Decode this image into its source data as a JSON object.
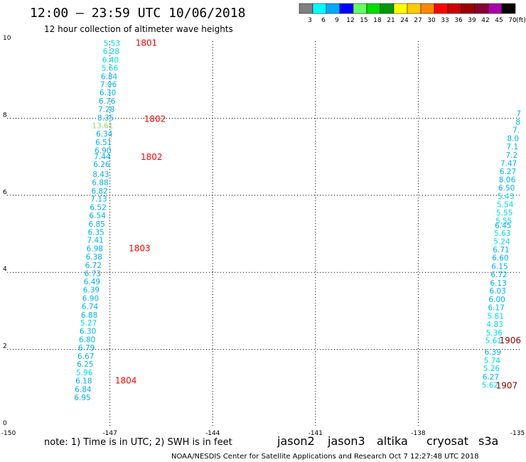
{
  "header": {
    "title": "12:00 – 23:59 UTC 10/06/2018",
    "subtitle": "12 hour collection of altimeter wave heights"
  },
  "color_scale": {
    "labels": [
      "3",
      "6",
      "9",
      "12",
      "15",
      "18",
      "21",
      "24",
      "27",
      "30",
      "33",
      "36",
      "39",
      "42",
      "45",
      "70"
    ],
    "unit": "(ft)",
    "colors": [
      "#808080",
      "#00ffff",
      "#00aaff",
      "#0000ff",
      "#66ff66",
      "#00dd00",
      "#009900",
      "#ffff00",
      "#ffcc00",
      "#ff8800",
      "#ff0000",
      "#cc0000",
      "#990000",
      "#880033",
      "#aa00aa",
      "#000000"
    ]
  },
  "chart_data": {
    "type": "scatter",
    "xlim": [
      -150,
      -135
    ],
    "ylim": [
      0,
      10
    ],
    "x_ticks": [
      "-150",
      "-147",
      "-144",
      "-141",
      "-138",
      "-135"
    ],
    "y_ticks": [
      "0",
      "2",
      "4",
      "6",
      "8",
      "10"
    ],
    "grid": true,
    "series": [
      {
        "track": "west",
        "points": [
          {
            "x": -146.7,
            "y": 9.95,
            "v": "5.53",
            "c": "#00d8e8"
          },
          {
            "x": -146.72,
            "y": 9.74,
            "v": "6.28",
            "c": "#00d8e8"
          },
          {
            "x": -146.74,
            "y": 9.52,
            "v": "6.40",
            "c": "#00d8e8"
          },
          {
            "x": -146.76,
            "y": 9.31,
            "v": "5.66",
            "c": "#00d8e8"
          },
          {
            "x": -146.78,
            "y": 9.09,
            "v": "6.84",
            "c": "#00b0f0"
          },
          {
            "x": -146.8,
            "y": 8.88,
            "v": "7.06",
            "c": "#00b0f0"
          },
          {
            "x": -146.82,
            "y": 8.67,
            "v": "6.30",
            "c": "#00b0f0"
          },
          {
            "x": -146.84,
            "y": 8.45,
            "v": "6.76",
            "c": "#00b0f0"
          },
          {
            "x": -146.86,
            "y": 8.24,
            "v": "7.28",
            "c": "#00b0f0"
          },
          {
            "x": -146.88,
            "y": 8.02,
            "v": "8.35",
            "c": "#00b0f0"
          },
          {
            "x": -146.9,
            "y": 7.81,
            "v": "13.61",
            "c": "#99dd66"
          },
          {
            "x": -146.92,
            "y": 7.6,
            "v": "6.34",
            "c": "#00b0f0"
          },
          {
            "x": -146.94,
            "y": 7.38,
            "v": "6.51",
            "c": "#00b0f0"
          },
          {
            "x": -146.96,
            "y": 7.17,
            "v": "6.90",
            "c": "#00b0f0"
          },
          {
            "x": -146.98,
            "y": 7.01,
            "v": "7.44",
            "c": "#00b0f0"
          },
          {
            "x": -147.0,
            "y": 6.81,
            "v": "6.26",
            "c": "#00b0f0"
          },
          {
            "x": -147.02,
            "y": 6.55,
            "v": "8.43",
            "c": "#00b0f0"
          },
          {
            "x": -147.04,
            "y": 6.34,
            "v": "6.88",
            "c": "#00b0f0"
          },
          {
            "x": -147.06,
            "y": 6.12,
            "v": "6.82",
            "c": "#00b0f0"
          },
          {
            "x": -147.08,
            "y": 5.91,
            "v": "7.13",
            "c": "#00b0f0"
          },
          {
            "x": -147.1,
            "y": 5.69,
            "v": "6.52",
            "c": "#00b0f0"
          },
          {
            "x": -147.12,
            "y": 5.48,
            "v": "6.54",
            "c": "#00b0f0"
          },
          {
            "x": -147.14,
            "y": 5.26,
            "v": "6.85",
            "c": "#00b0f0"
          },
          {
            "x": -147.16,
            "y": 5.05,
            "v": "6.35",
            "c": "#00b0f0"
          },
          {
            "x": -147.18,
            "y": 4.84,
            "v": "7.41",
            "c": "#00b0f0"
          },
          {
            "x": -147.2,
            "y": 4.62,
            "v": "6.98",
            "c": "#00b0f0"
          },
          {
            "x": -147.22,
            "y": 4.41,
            "v": "6.38",
            "c": "#00b0f0"
          },
          {
            "x": -147.24,
            "y": 4.19,
            "v": "6.72",
            "c": "#00b0f0"
          },
          {
            "x": -147.26,
            "y": 3.98,
            "v": "6.73",
            "c": "#00b0f0"
          },
          {
            "x": -147.28,
            "y": 3.76,
            "v": "6.49",
            "c": "#00b0f0"
          },
          {
            "x": -147.3,
            "y": 3.55,
            "v": "6.39",
            "c": "#00b0f0"
          },
          {
            "x": -147.32,
            "y": 3.33,
            "v": "6.90",
            "c": "#00b0f0"
          },
          {
            "x": -147.34,
            "y": 3.12,
            "v": "6.74",
            "c": "#00b0f0"
          },
          {
            "x": -147.36,
            "y": 2.9,
            "v": "6.88",
            "c": "#00b0f0"
          },
          {
            "x": -147.38,
            "y": 2.69,
            "v": "5.27",
            "c": "#00d8e8"
          },
          {
            "x": -147.4,
            "y": 2.48,
            "v": "6.30",
            "c": "#00b0f0"
          },
          {
            "x": -147.42,
            "y": 2.26,
            "v": "6.80",
            "c": "#00b0f0"
          },
          {
            "x": -147.44,
            "y": 2.05,
            "v": "6.79",
            "c": "#00b0f0"
          },
          {
            "x": -147.46,
            "y": 1.83,
            "v": "6.67",
            "c": "#00b0f0"
          },
          {
            "x": -147.48,
            "y": 1.62,
            "v": "6.25",
            "c": "#00b0f0"
          },
          {
            "x": -147.5,
            "y": 1.4,
            "v": "5.96",
            "c": "#00d8e8"
          },
          {
            "x": -147.52,
            "y": 1.19,
            "v": "6.18",
            "c": "#00b0f0"
          },
          {
            "x": -147.54,
            "y": 0.97,
            "v": "6.84",
            "c": "#00b0f0"
          },
          {
            "x": -147.56,
            "y": 0.76,
            "v": "6.95",
            "c": "#00b0f0"
          }
        ]
      },
      {
        "track": "east",
        "points": [
          {
            "x": -135.0,
            "y": 8.13,
            "v": "7",
            "c": "#00b0f0"
          },
          {
            "x": -135.02,
            "y": 7.91,
            "v": "8",
            "c": "#00b0f0"
          },
          {
            "x": -135.04,
            "y": 7.7,
            "v": "7.",
            "c": "#00b0f0"
          },
          {
            "x": -135.06,
            "y": 7.48,
            "v": "8.0",
            "c": "#00b0f0"
          },
          {
            "x": -135.08,
            "y": 7.27,
            "v": "7.1",
            "c": "#00b0f0"
          },
          {
            "x": -135.1,
            "y": 7.05,
            "v": "7.2",
            "c": "#00b0f0"
          },
          {
            "x": -135.12,
            "y": 6.84,
            "v": "7.47",
            "c": "#00b0f0"
          },
          {
            "x": -135.14,
            "y": 6.62,
            "v": "6.27",
            "c": "#00b0f0"
          },
          {
            "x": -135.16,
            "y": 6.41,
            "v": "8.06",
            "c": "#00b0f0"
          },
          {
            "x": -135.18,
            "y": 6.2,
            "v": "6.50",
            "c": "#00b0f0"
          },
          {
            "x": -135.2,
            "y": 5.98,
            "v": "5.43",
            "c": "#00d8e8"
          },
          {
            "x": -135.22,
            "y": 5.77,
            "v": "5.54",
            "c": "#00d8e8"
          },
          {
            "x": -135.24,
            "y": 5.55,
            "v": "5.55",
            "c": "#00d8e8"
          },
          {
            "x": -135.26,
            "y": 5.34,
            "v": "5.55",
            "c": "#00d8e8"
          },
          {
            "x": -135.28,
            "y": 5.22,
            "v": "6.45",
            "c": "#00b0f0"
          },
          {
            "x": -135.3,
            "y": 5.02,
            "v": "5.63",
            "c": "#00d8e8"
          },
          {
            "x": -135.32,
            "y": 4.81,
            "v": "5.24",
            "c": "#00d8e8"
          },
          {
            "x": -135.34,
            "y": 4.59,
            "v": "6.71",
            "c": "#00b0f0"
          },
          {
            "x": -135.36,
            "y": 4.38,
            "v": "6.60",
            "c": "#00b0f0"
          },
          {
            "x": -135.38,
            "y": 4.16,
            "v": "6.15",
            "c": "#00b0f0"
          },
          {
            "x": -135.4,
            "y": 3.95,
            "v": "6.72",
            "c": "#00b0f0"
          },
          {
            "x": -135.42,
            "y": 3.73,
            "v": "6.13",
            "c": "#00b0f0"
          },
          {
            "x": -135.44,
            "y": 3.52,
            "v": "6.03",
            "c": "#00b0f0"
          },
          {
            "x": -135.46,
            "y": 3.3,
            "v": "6.00",
            "c": "#00b0f0"
          },
          {
            "x": -135.48,
            "y": 3.09,
            "v": "6.17",
            "c": "#00b0f0"
          },
          {
            "x": -135.5,
            "y": 2.87,
            "v": "5.81",
            "c": "#00d8e8"
          },
          {
            "x": -135.52,
            "y": 2.66,
            "v": "4.83",
            "c": "#00d8e8"
          },
          {
            "x": -135.54,
            "y": 2.44,
            "v": "5.36",
            "c": "#00d8e8"
          },
          {
            "x": -135.56,
            "y": 2.23,
            "v": "5.61",
            "c": "#00d8e8"
          },
          {
            "x": -135.58,
            "y": 1.94,
            "v": "6.39",
            "c": "#00b0f0"
          },
          {
            "x": -135.6,
            "y": 1.72,
            "v": "5.74",
            "c": "#00d8e8"
          },
          {
            "x": -135.62,
            "y": 1.51,
            "v": "5.26",
            "c": "#00d8e8"
          },
          {
            "x": -135.64,
            "y": 1.29,
            "v": "6.27",
            "c": "#00b0f0"
          },
          {
            "x": -135.66,
            "y": 1.08,
            "v": "5.62",
            "c": "#00d8e8"
          }
        ]
      }
    ],
    "time_labels": [
      {
        "x": -146.25,
        "y": 9.95,
        "text": "1801",
        "c": "#ff0000"
      },
      {
        "x": -146.0,
        "y": 7.98,
        "text": "1802",
        "c": "#ff0000"
      },
      {
        "x": -146.1,
        "y": 6.99,
        "text": "1802",
        "c": "#ff0000"
      },
      {
        "x": -146.45,
        "y": 4.62,
        "text": "1803",
        "c": "#ff0000"
      },
      {
        "x": -146.85,
        "y": 1.19,
        "text": "1804",
        "c": "#ff0000"
      },
      {
        "x": -135.0,
        "y": 2.23,
        "text": "1906",
        "c": "#880000"
      },
      {
        "x": -135.1,
        "y": 1.06,
        "text": "1907",
        "c": "#880000"
      }
    ]
  },
  "note": "note:  1) Time is in UTC; 2) SWH is in feet",
  "satellites": [
    {
      "name": "jason2",
      "color": "#0000ee"
    },
    {
      "name": "jason3",
      "color": "#009900"
    },
    {
      "name": "altika",
      "color": "#ff9900"
    },
    {
      "name": "cryosat",
      "color": "#ff0000"
    },
    {
      "name": "s3a",
      "color": "#880000"
    }
  ],
  "footer": "NOAA/NESDIS Center for Satellite Applications and Research   Oct  7 12:27:48 UTC 2018"
}
